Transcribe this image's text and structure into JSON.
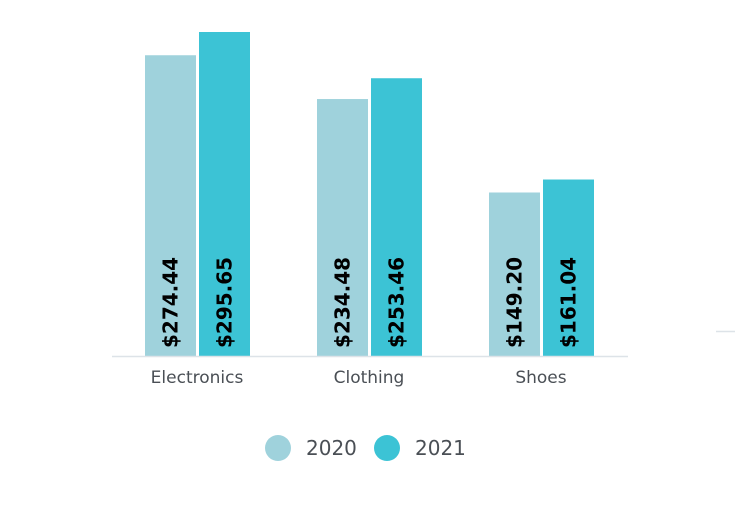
{
  "chart_data": {
    "type": "bar",
    "categories": [
      "Electronics",
      "Clothing",
      "Shoes"
    ],
    "series": [
      {
        "name": "2020",
        "color": "#9fd2dc",
        "values": [
          274.44,
          234.48,
          149.2
        ],
        "labels": [
          "$274.44",
          "$234.48",
          "$149.20"
        ]
      },
      {
        "name": "2021",
        "color": "#3cc3d5",
        "values": [
          295.65,
          253.46,
          161.04
        ],
        "labels": [
          "$295.65",
          "$253.46",
          "$161.04"
        ]
      }
    ],
    "ylim": [
      0,
      295.65
    ],
    "legend": "bottom",
    "grid": false,
    "axis_color": "#dde3e8"
  }
}
